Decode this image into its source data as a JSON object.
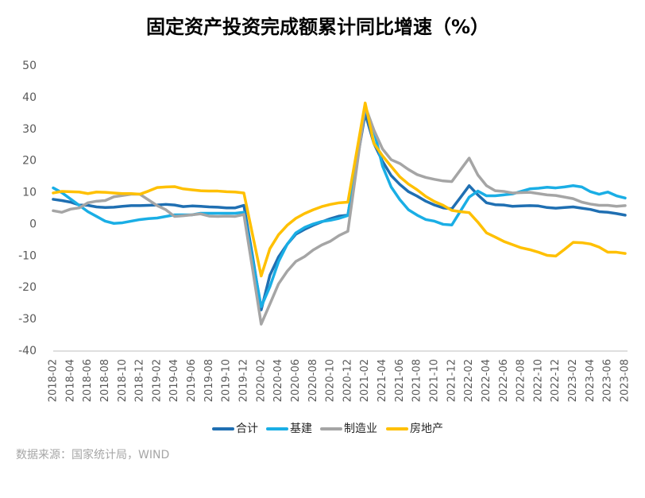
{
  "chart_data": {
    "type": "line",
    "title": "固定资产投资完成额累计同比增速（%）",
    "source": "数据来源：国家统计局，WIND",
    "categories": [
      "2018-02",
      null,
      "2018-04",
      null,
      "2018-06",
      null,
      "2018-08",
      null,
      "2018-10",
      null,
      "2018-12",
      null,
      "2019-02",
      null,
      "2019-04",
      null,
      "2019-06",
      null,
      "2019-08",
      null,
      "2019-10",
      null,
      "2019-12",
      null,
      "2020-02",
      null,
      "2020-04",
      null,
      "2020-06",
      null,
      "2020-08",
      null,
      "2020-10",
      null,
      "2020-12",
      null,
      "2021-02",
      null,
      "2021-04",
      null,
      "2021-06",
      null,
      "2021-08",
      null,
      "2021-10",
      null,
      "2021-12",
      null,
      "2022-02",
      null,
      "2022-04",
      null,
      "2022-06",
      null,
      "2022-08",
      null,
      "2022-10",
      null,
      "2022-12",
      null,
      "2023-02",
      null,
      "2023-04",
      null,
      "2023-06",
      null,
      "2023-08"
    ],
    "series": [
      {
        "name": "合计",
        "color": "#1f6fb2",
        "values": [
          7.9,
          7.5,
          7.0,
          6.1,
          6.0,
          5.5,
          5.3,
          5.4,
          5.7,
          5.9,
          5.9,
          6.0,
          6.1,
          6.3,
          6.1,
          5.6,
          5.8,
          5.7,
          5.5,
          5.4,
          5.2,
          5.2,
          6.0,
          -10,
          -27,
          -16.1,
          -10.3,
          -6.3,
          -3.1,
          -1.6,
          -0.3,
          0.8,
          1.8,
          2.6,
          2.9,
          19,
          35.0,
          25.6,
          19.9,
          15.4,
          12.6,
          10.3,
          8.9,
          7.3,
          6.1,
          5.2,
          4.9,
          8.5,
          12.2,
          9.3,
          6.8,
          6.2,
          6.1,
          5.7,
          5.8,
          5.9,
          5.8,
          5.3,
          5.1,
          5.3,
          5.5,
          5.1,
          4.7,
          4.0,
          3.8,
          3.4,
          2.9
        ]
      },
      {
        "name": "基建",
        "color": "#1aaee5",
        "values": [
          11.5,
          10,
          8,
          6,
          4,
          2.5,
          1,
          0.3,
          0.5,
          1,
          1.5,
          1.8,
          2.0,
          2.5,
          3.0,
          3.0,
          3.0,
          3.5,
          3.5,
          3.5,
          3.5,
          3.5,
          3.8,
          -11,
          -26,
          -19.7,
          -11.8,
          -6.3,
          -2.7,
          -1.0,
          0.1,
          0.9,
          1.3,
          1.9,
          2.8,
          19.7,
          36.6,
          29.7,
          18.4,
          11.8,
          7.8,
          4.6,
          2.9,
          1.5,
          1.0,
          0.0,
          -0.2,
          4.2,
          8.6,
          10.5,
          9.0,
          9.0,
          9.3,
          9.6,
          10.4,
          11.2,
          11.4,
          11.7,
          11.5,
          11.8,
          12.2,
          11.8,
          10.3,
          9.5,
          10.2,
          9.0,
          8.3
        ]
      },
      {
        "name": "制造业",
        "color": "#a5a5a5",
        "values": [
          4.3,
          3.8,
          4.8,
          5.2,
          6.8,
          7.3,
          7.5,
          8.7,
          9.1,
          9.5,
          9.5,
          7.7,
          5.9,
          4.6,
          2.5,
          2.7,
          3.0,
          3.3,
          2.6,
          2.5,
          2.6,
          2.5,
          3.1,
          -14,
          -31.5,
          -25.2,
          -18.8,
          -14.8,
          -11.7,
          -10.2,
          -8.1,
          -6.5,
          -5.3,
          -3.5,
          -2.2,
          17.5,
          37.3,
          29.8,
          23.8,
          20.4,
          19.2,
          17.3,
          15.7,
          14.8,
          14.2,
          13.7,
          13.5,
          17.2,
          20.9,
          15.6,
          12.2,
          10.6,
          10.4,
          9.9,
          10.0,
          10.1,
          9.7,
          9.3,
          9.1,
          8.6,
          8.1,
          7.0,
          6.4,
          6.0,
          6.0,
          5.7,
          5.9
        ]
      },
      {
        "name": "房地产",
        "color": "#ffc000",
        "values": [
          9.9,
          10.4,
          10.3,
          10.2,
          9.7,
          10.2,
          10.1,
          9.9,
          9.7,
          9.7,
          9.5,
          10.5,
          11.6,
          11.8,
          11.9,
          11.2,
          10.9,
          10.6,
          10.5,
          10.5,
          10.3,
          10.2,
          9.9,
          -3.2,
          -16.3,
          -7.7,
          -3.3,
          -0.3,
          1.9,
          3.4,
          4.6,
          5.6,
          6.3,
          6.8,
          7.0,
          22.6,
          38.3,
          25.6,
          21.6,
          18.3,
          15.0,
          12.7,
          10.9,
          8.8,
          7.2,
          6.0,
          4.4,
          4.0,
          3.7,
          0.7,
          -2.7,
          -4.0,
          -5.4,
          -6.4,
          -7.4,
          -8.0,
          -8.8,
          -9.8,
          -10.0,
          -7.9,
          -5.7,
          -5.8,
          -6.2,
          -7.2,
          -8.8,
          -8.8,
          -9.2
        ]
      }
    ],
    "ylim": [
      -40,
      50
    ],
    "yticks": [
      -40,
      -30,
      -20,
      -10,
      0,
      10,
      20,
      30,
      40,
      50
    ],
    "grid": false,
    "legend": "bottom"
  }
}
